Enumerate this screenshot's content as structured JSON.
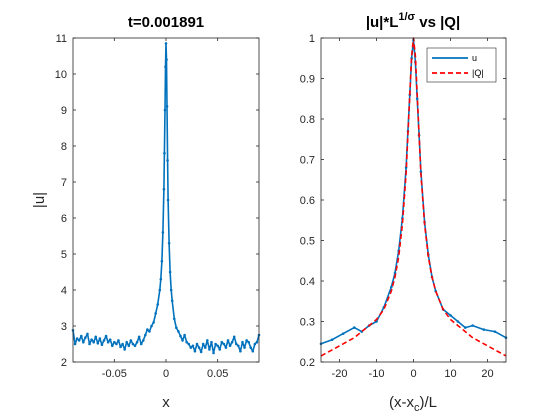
{
  "chart_data": [
    {
      "type": "line",
      "title": "t=0.001891",
      "xlabel": "x",
      "ylabel": "|u|",
      "xlim": [
        -0.09,
        0.09
      ],
      "ylim": [
        2,
        11
      ],
      "xticks": [
        -0.05,
        0,
        0.05
      ],
      "xtick_labels": [
        "-0.05",
        "0",
        "0.05"
      ],
      "yticks": [
        2,
        3,
        4,
        5,
        6,
        7,
        8,
        9,
        10,
        11
      ],
      "ytick_labels": [
        "2",
        "3",
        "4",
        "5",
        "6",
        "7",
        "8",
        "9",
        "10",
        "11"
      ],
      "grid": false,
      "series": [
        {
          "name": "",
          "color": "#0072BD",
          "x": [
            -0.09,
            -0.088,
            -0.086,
            -0.084,
            -0.082,
            -0.08,
            -0.078,
            -0.076,
            -0.074,
            -0.072,
            -0.07,
            -0.068,
            -0.066,
            -0.064,
            -0.062,
            -0.06,
            -0.058,
            -0.056,
            -0.054,
            -0.052,
            -0.05,
            -0.048,
            -0.046,
            -0.044,
            -0.042,
            -0.04,
            -0.038,
            -0.036,
            -0.034,
            -0.032,
            -0.03,
            -0.028,
            -0.026,
            -0.024,
            -0.022,
            -0.02,
            -0.018,
            -0.016,
            -0.014,
            -0.012,
            -0.01,
            -0.008,
            -0.006,
            -0.005,
            -0.004,
            -0.003,
            -0.002,
            -0.0015,
            -0.001,
            -0.0005,
            0,
            0.0005,
            0.001,
            0.0015,
            0.002,
            0.003,
            0.004,
            0.005,
            0.006,
            0.008,
            0.01,
            0.012,
            0.014,
            0.016,
            0.018,
            0.02,
            0.022,
            0.024,
            0.026,
            0.028,
            0.03,
            0.032,
            0.034,
            0.036,
            0.038,
            0.04,
            0.042,
            0.044,
            0.046,
            0.048,
            0.05,
            0.052,
            0.054,
            0.056,
            0.058,
            0.06,
            0.062,
            0.064,
            0.066,
            0.068,
            0.07,
            0.072,
            0.074,
            0.076,
            0.078,
            0.08,
            0.082,
            0.084,
            0.086,
            0.088,
            0.09
          ],
          "y": [
            2.88,
            2.5,
            2.65,
            2.6,
            2.72,
            2.55,
            2.68,
            2.78,
            2.5,
            2.62,
            2.55,
            2.7,
            2.52,
            2.65,
            2.48,
            2.6,
            2.72,
            2.55,
            2.62,
            2.45,
            2.55,
            2.5,
            2.6,
            2.42,
            2.5,
            2.35,
            2.55,
            2.45,
            2.6,
            2.5,
            2.45,
            2.55,
            2.7,
            2.5,
            2.6,
            2.75,
            2.9,
            2.85,
            3.0,
            3.1,
            3.35,
            3.6,
            4.0,
            4.3,
            4.8,
            5.6,
            6.8,
            7.8,
            9.0,
            10.2,
            10.85,
            10.4,
            9.1,
            7.6,
            6.5,
            5.3,
            4.5,
            4.0,
            3.7,
            3.2,
            2.95,
            2.85,
            2.72,
            2.6,
            2.75,
            2.55,
            2.5,
            2.4,
            2.45,
            2.3,
            2.5,
            2.4,
            2.28,
            2.5,
            2.4,
            2.6,
            2.35,
            2.55,
            2.25,
            2.5,
            2.45,
            2.35,
            2.55,
            2.5,
            2.4,
            2.6,
            2.45,
            2.55,
            2.7,
            2.5,
            2.45,
            2.3,
            2.55,
            2.4,
            2.6,
            2.55,
            2.4,
            2.3,
            2.5,
            2.55,
            2.75
          ]
        }
      ]
    },
    {
      "type": "line",
      "title_base": "|u|*L",
      "title_sup": "1/σ",
      "title_tail": " vs |Q|",
      "xlabel_base": "(x-x",
      "xlabel_sub": "c",
      "xlabel_tail": ")/L",
      "ylabel": "",
      "xlim": [
        -25,
        25
      ],
      "ylim": [
        0.2,
        1.0
      ],
      "xticks": [
        -20,
        -10,
        0,
        10,
        20
      ],
      "xtick_labels": [
        "-20",
        "-10",
        "0",
        "10",
        "20"
      ],
      "yticks": [
        0.2,
        0.3,
        0.4,
        0.5,
        0.6,
        0.7,
        0.8,
        0.9,
        1.0
      ],
      "ytick_labels": [
        "0.2",
        "0.3",
        "0.4",
        "0.5",
        "0.6",
        "0.7",
        "0.8",
        "0.9",
        "1"
      ],
      "grid": false,
      "legend_position": "top-right",
      "series": [
        {
          "name": "u",
          "color": "#0072BD",
          "style": "solid-markers",
          "x": [
            -25,
            -22,
            -19,
            -16,
            -14,
            -12,
            -10,
            -8,
            -6,
            -5,
            -4,
            -3,
            -2,
            -1.5,
            -1,
            -0.5,
            0,
            0.5,
            1,
            1.5,
            2,
            3,
            4,
            5,
            6,
            8,
            10,
            12,
            14,
            16,
            19,
            22,
            25
          ],
          "y": [
            0.245,
            0.255,
            0.27,
            0.285,
            0.275,
            0.29,
            0.3,
            0.335,
            0.385,
            0.42,
            0.475,
            0.555,
            0.68,
            0.77,
            0.86,
            0.95,
            0.995,
            0.94,
            0.85,
            0.76,
            0.67,
            0.545,
            0.465,
            0.41,
            0.375,
            0.33,
            0.315,
            0.3,
            0.285,
            0.29,
            0.28,
            0.275,
            0.26
          ]
        },
        {
          "name": "|Q|",
          "color": "#FF0000",
          "style": "dashed",
          "x": [
            -25,
            -22,
            -19,
            -16,
            -14,
            -12,
            -10,
            -8,
            -6,
            -5,
            -4,
            -3,
            -2,
            -1.5,
            -1,
            -0.5,
            0,
            0.5,
            1,
            1.5,
            2,
            3,
            4,
            5,
            6,
            8,
            10,
            12,
            14,
            16,
            19,
            22,
            25
          ],
          "y": [
            0.215,
            0.23,
            0.245,
            0.26,
            0.275,
            0.29,
            0.305,
            0.33,
            0.375,
            0.41,
            0.46,
            0.54,
            0.665,
            0.76,
            0.86,
            0.955,
            1.0,
            0.955,
            0.86,
            0.76,
            0.665,
            0.54,
            0.46,
            0.41,
            0.375,
            0.33,
            0.305,
            0.29,
            0.275,
            0.26,
            0.245,
            0.23,
            0.215
          ]
        }
      ]
    }
  ]
}
